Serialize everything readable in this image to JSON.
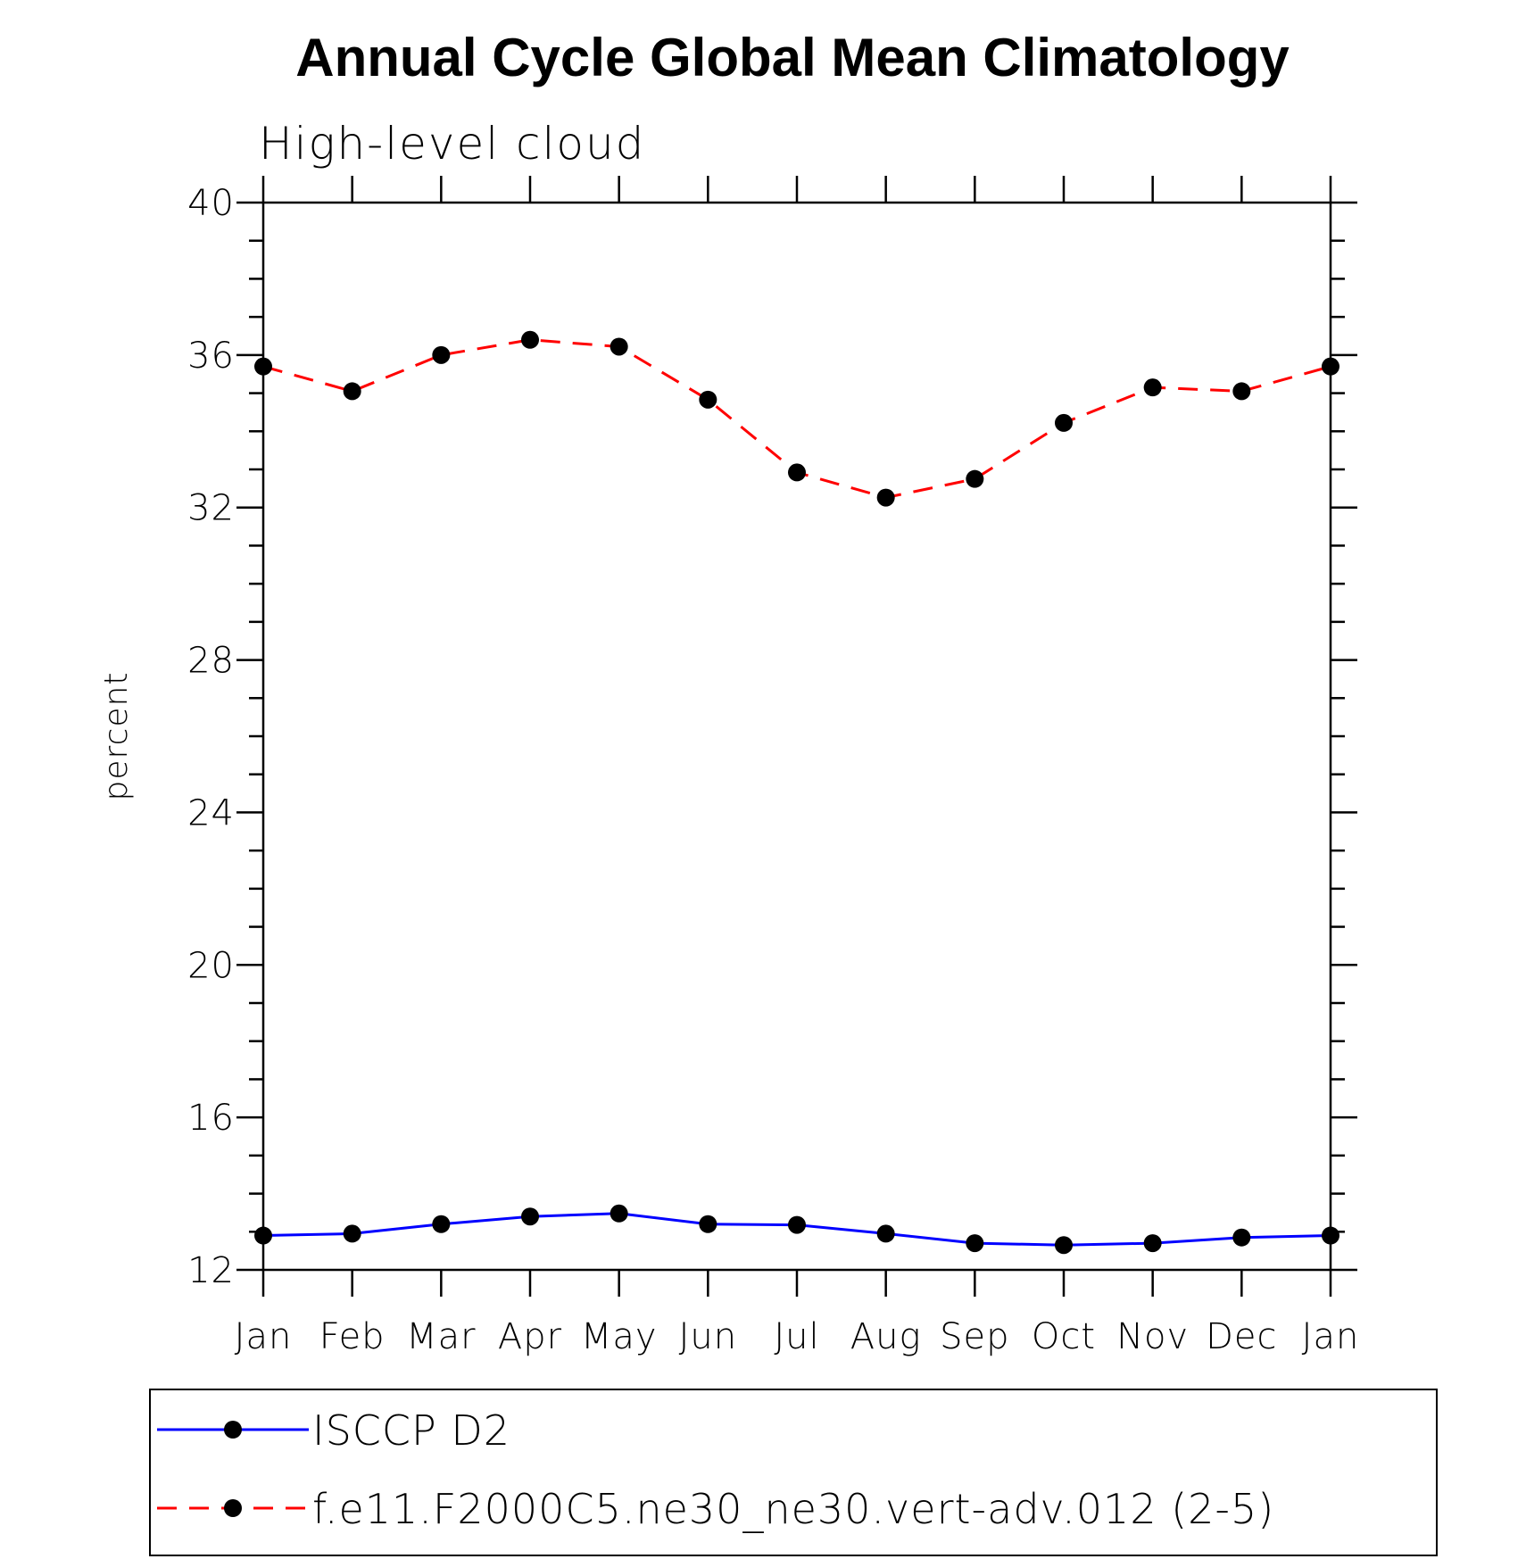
{
  "chart_data": {
    "type": "line",
    "title": "Annual Cycle Global Mean Climatology",
    "subtitle": "High-level cloud",
    "xlabel": "",
    "ylabel": "percent",
    "categories": [
      "Jan",
      "Feb",
      "Mar",
      "Apr",
      "May",
      "Jun",
      "Jul",
      "Aug",
      "Sep",
      "Oct",
      "Nov",
      "Dec",
      "Jan"
    ],
    "ylim": [
      12,
      40
    ],
    "yticks": [
      12,
      16,
      20,
      24,
      28,
      32,
      36,
      40
    ],
    "y_minor_step": 1,
    "grid": false,
    "legend_placement": "bottom",
    "series": [
      {
        "name": "ISCCP D2",
        "color": "#0000ff",
        "dash": "solid",
        "marker": "filled-circle",
        "values": [
          12.9,
          12.95,
          13.2,
          13.4,
          13.48,
          13.2,
          13.18,
          12.95,
          12.7,
          12.65,
          12.7,
          12.85,
          12.9
        ]
      },
      {
        "name": "f.e11.F2000C5.ne30_ne30.vert-adv.012 (2-5)",
        "color": "#ff0000",
        "dash": "dashed",
        "marker": "filled-circle",
        "values": [
          35.7,
          35.05,
          36.0,
          36.4,
          36.22,
          34.83,
          32.92,
          32.26,
          32.75,
          34.22,
          35.15,
          35.05,
          35.7
        ]
      }
    ]
  }
}
